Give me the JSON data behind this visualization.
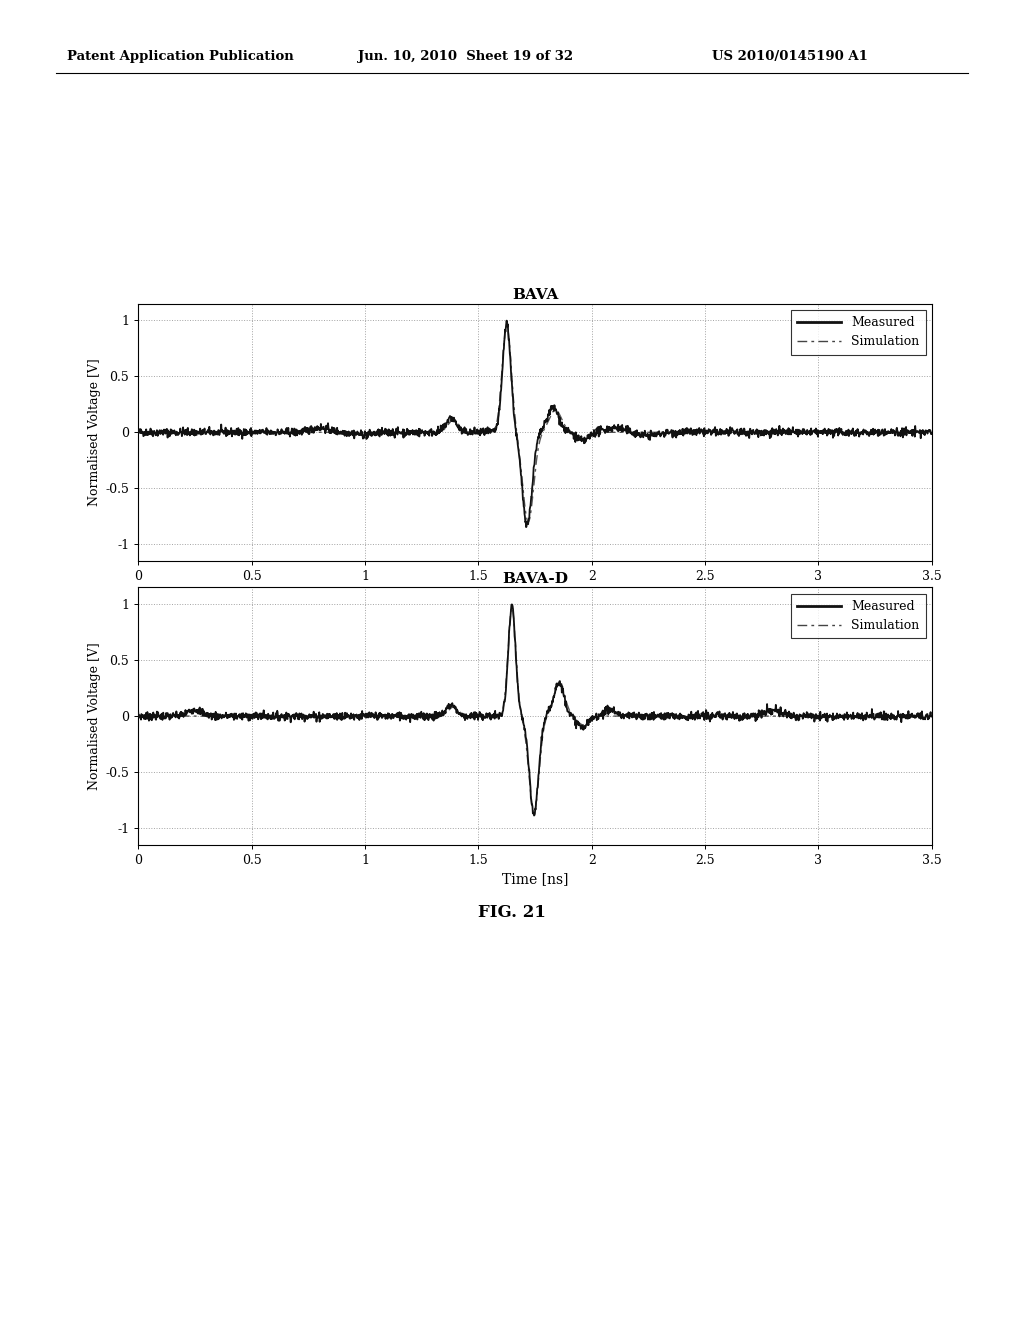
{
  "title1": "BAVA",
  "title2": "BAVA-D",
  "xlabel": "Time [ns]",
  "ylabel": "Normalised Voltage [V]",
  "xlim": [
    0,
    3.5
  ],
  "ylim": [
    -1.15,
    1.15
  ],
  "xticks": [
    0,
    0.5,
    1,
    1.5,
    2,
    2.5,
    3,
    3.5
  ],
  "yticks": [
    -1,
    -0.5,
    0,
    0.5,
    1
  ],
  "header_left": "Patent Application Publication",
  "header_center": "Jun. 10, 2010  Sheet 19 of 32",
  "header_right": "US 2010/0145190 A1",
  "fig_label": "FIG. 21",
  "background_color": "#ffffff",
  "line_color_measured": "#111111",
  "line_color_simulation": "#555555",
  "grid_color": "#999999",
  "legend_entries": [
    "Measured",
    "Simulation"
  ],
  "noise_amp_bava": 0.018,
  "noise_amp_bava_d": 0.018
}
